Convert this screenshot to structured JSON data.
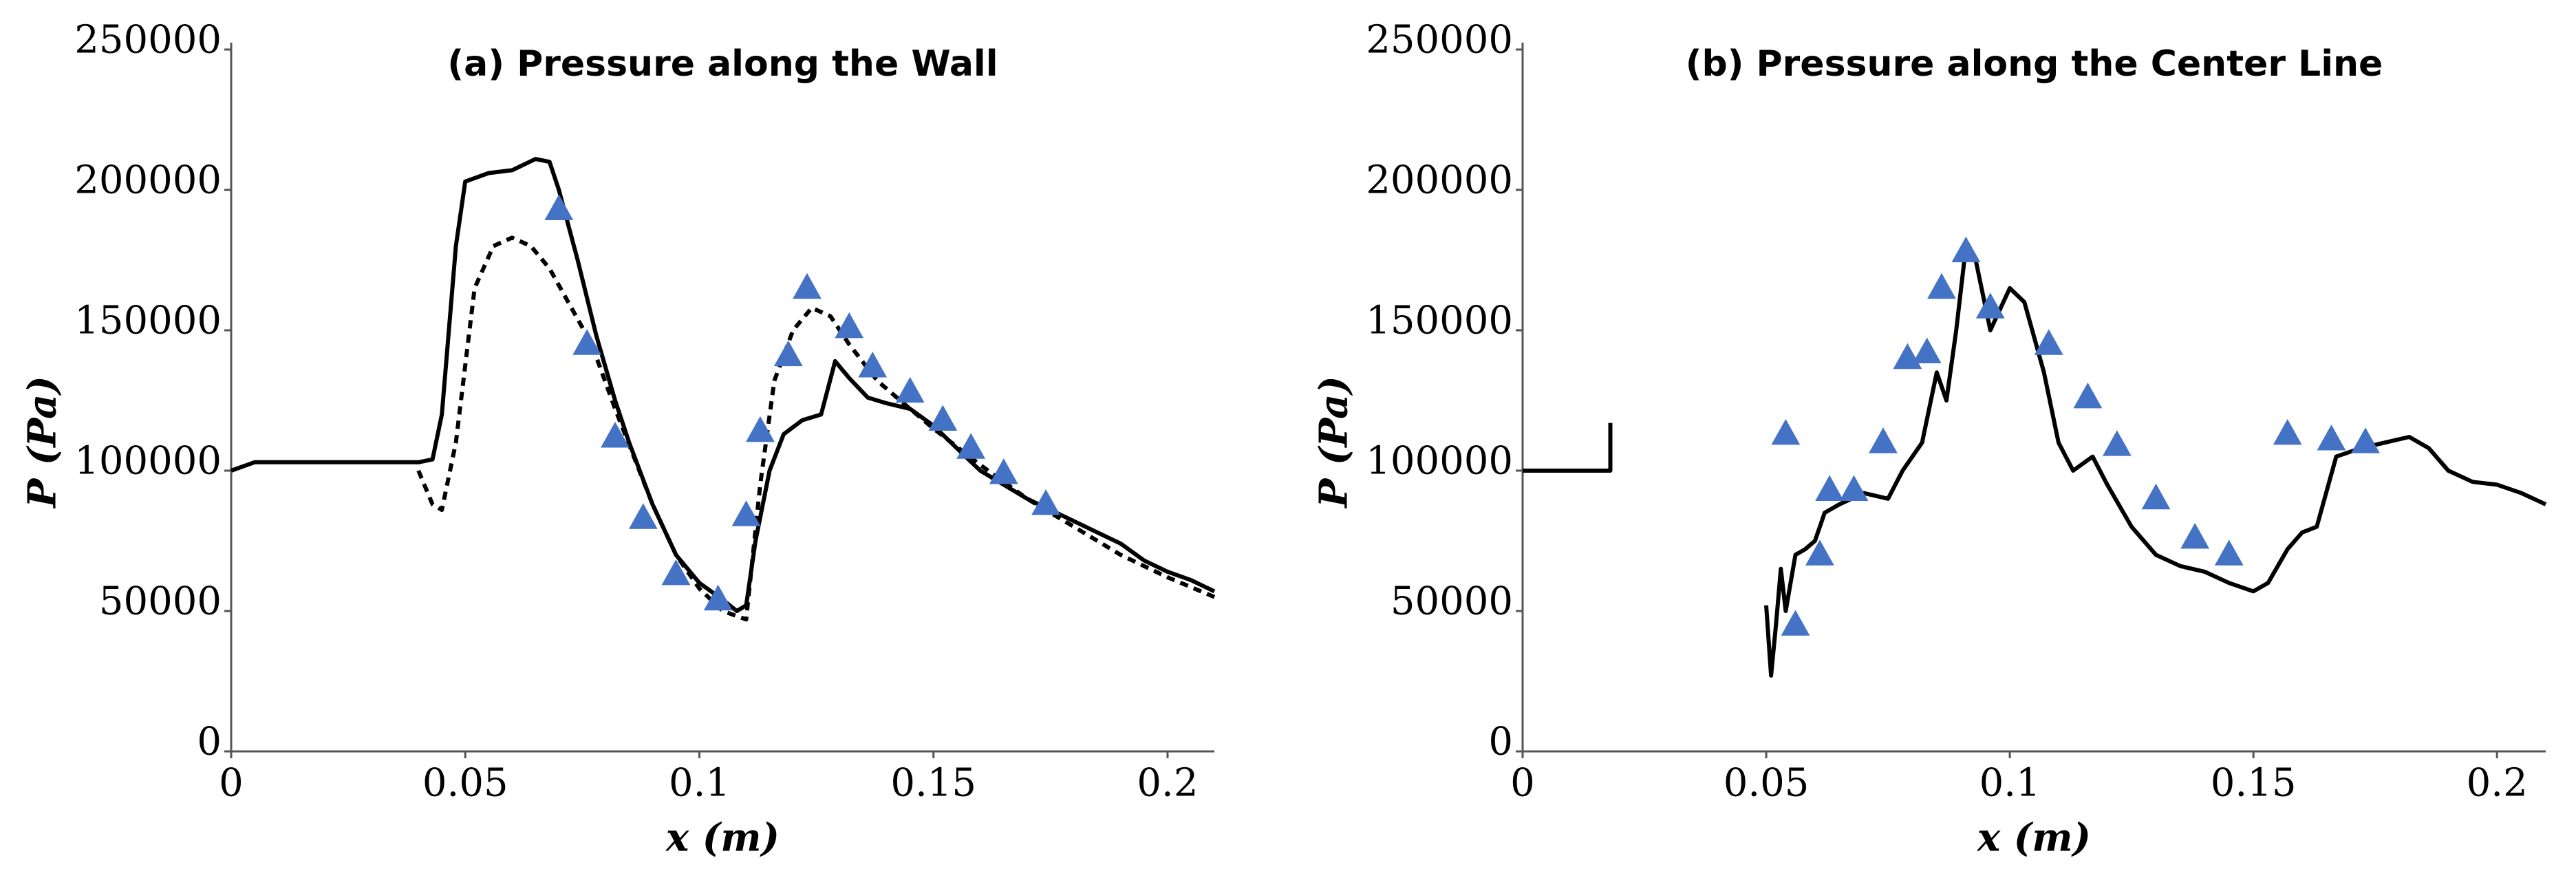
{
  "chart_data": [
    {
      "type": "line",
      "title": "(a) Pressure along the Wall",
      "xlabel": "x (m)",
      "ylabel": "P (Pa)",
      "xlim": [
        0,
        0.21
      ],
      "ylim": [
        0,
        250000
      ],
      "xticks": [
        0,
        0.05,
        0.1,
        0.15,
        0.2
      ],
      "yticks": [
        0,
        50000,
        100000,
        150000,
        200000,
        250000
      ],
      "series": [
        {
          "style": "solid",
          "color": "#000000",
          "x": [
            0,
            0.005,
            0.02,
            0.04,
            0.043,
            0.045,
            0.048,
            0.05,
            0.055,
            0.06,
            0.065,
            0.068,
            0.07,
            0.074,
            0.078,
            0.082,
            0.085,
            0.09,
            0.095,
            0.1,
            0.105,
            0.108,
            0.11,
            0.112,
            0.115,
            0.118,
            0.122,
            0.126,
            0.129,
            0.132,
            0.136,
            0.14,
            0.145,
            0.15,
            0.155,
            0.16,
            0.165,
            0.17,
            0.175,
            0.18,
            0.185,
            0.19,
            0.195,
            0.2,
            0.205,
            0.21
          ],
          "values": [
            100000,
            103000,
            103000,
            103000,
            104000,
            120000,
            180000,
            203000,
            206000,
            207000,
            211000,
            210000,
            200000,
            175000,
            148000,
            125000,
            110000,
            88000,
            70000,
            60000,
            54000,
            50000,
            52000,
            75000,
            100000,
            113000,
            118000,
            120000,
            139000,
            133000,
            126000,
            124000,
            122000,
            116000,
            108000,
            100000,
            95000,
            90000,
            86000,
            82000,
            78000,
            74000,
            68000,
            64000,
            61000,
            57000
          ]
        },
        {
          "style": "dashed",
          "color": "#000000",
          "x": [
            0.04,
            0.043,
            0.045,
            0.048,
            0.052,
            0.056,
            0.06,
            0.064,
            0.068,
            0.072,
            0.077,
            0.082,
            0.086,
            0.09,
            0.095,
            0.1,
            0.105,
            0.11,
            0.113,
            0.116,
            0.12,
            0.124,
            0.128,
            0.132,
            0.138,
            0.145,
            0.15,
            0.16,
            0.17,
            0.18,
            0.19,
            0.2,
            0.21
          ],
          "values": [
            100000,
            88000,
            86000,
            110000,
            165000,
            180000,
            183000,
            180000,
            172000,
            160000,
            145000,
            122000,
            105000,
            88000,
            70000,
            58000,
            50000,
            47000,
            95000,
            132000,
            150000,
            158000,
            155000,
            145000,
            132000,
            122000,
            115000,
            102000,
            90000,
            80000,
            70000,
            62000,
            55000
          ]
        },
        {
          "style": "marker",
          "color": "#4472c4",
          "x": [
            0.07,
            0.076,
            0.082,
            0.088,
            0.095,
            0.104,
            0.11,
            0.113,
            0.119,
            0.123,
            0.132,
            0.137,
            0.145,
            0.152,
            0.158,
            0.165,
            0.174
          ],
          "values": [
            193000,
            145000,
            112000,
            83000,
            63000,
            54000,
            84000,
            114000,
            141000,
            165000,
            151000,
            137000,
            128000,
            118000,
            108000,
            99000,
            88000
          ]
        }
      ]
    },
    {
      "type": "line",
      "title": "(b) Pressure along the Center Line",
      "xlabel": "x (m)",
      "ylabel": "P (Pa)",
      "xlim": [
        0,
        0.21
      ],
      "ylim": [
        0,
        250000
      ],
      "xticks": [
        0,
        0.05,
        0.1,
        0.15,
        0.2
      ],
      "yticks": [
        0,
        50000,
        100000,
        150000,
        200000,
        250000
      ],
      "series": [
        {
          "style": "solid",
          "color": "#000000",
          "x": [
            0,
            0.018,
            0.018
          ],
          "values": [
            100000,
            100000,
            117000
          ]
        },
        {
          "style": "solid",
          "color": "#000000",
          "x": [
            0.05,
            0.051,
            0.052,
            0.053,
            0.054,
            0.056,
            0.058,
            0.06,
            0.062,
            0.065,
            0.07,
            0.075,
            0.078,
            0.082,
            0.085,
            0.087,
            0.089,
            0.091,
            0.093,
            0.096,
            0.1,
            0.103,
            0.107,
            0.11,
            0.113,
            0.117,
            0.12,
            0.125,
            0.13,
            0.135,
            0.14,
            0.145,
            0.15,
            0.153,
            0.157,
            0.16,
            0.163,
            0.167,
            0.172,
            0.177,
            0.182,
            0.186,
            0.19,
            0.195,
            0.2,
            0.205,
            0.21
          ],
          "values": [
            52000,
            27000,
            45000,
            65000,
            50000,
            70000,
            72000,
            75000,
            85000,
            88000,
            92000,
            90000,
            100000,
            110000,
            135000,
            125000,
            150000,
            180000,
            175000,
            150000,
            165000,
            160000,
            135000,
            110000,
            100000,
            105000,
            95000,
            80000,
            70000,
            66000,
            64000,
            60000,
            57000,
            60000,
            72000,
            78000,
            80000,
            105000,
            108000,
            110000,
            112000,
            108000,
            100000,
            96000,
            95000,
            92000,
            88000
          ]
        },
        {
          "style": "marker",
          "color": "#4472c4",
          "x": [
            0.054,
            0.056,
            0.061,
            0.063,
            0.068,
            0.074,
            0.079,
            0.083,
            0.086,
            0.091,
            0.096,
            0.108,
            0.116,
            0.122,
            0.13,
            0.138,
            0.145,
            0.157,
            0.166,
            0.173
          ],
          "values": [
            113000,
            45000,
            70000,
            93000,
            93000,
            110000,
            140000,
            142000,
            165000,
            178000,
            158000,
            145000,
            126000,
            109000,
            90000,
            76000,
            70000,
            113000,
            111000,
            110000
          ]
        }
      ]
    }
  ]
}
